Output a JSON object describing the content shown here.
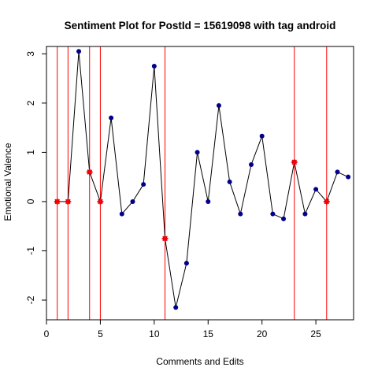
{
  "chart_data": {
    "type": "line",
    "title": "Sentiment Plot for PostId =  15619098  with tag  android",
    "xlabel": "Comments and Edits",
    "ylabel": "Emotional Valence",
    "xlim": [
      0,
      28.5
    ],
    "ylim": [
      -2.4,
      3.15
    ],
    "x_ticks": [
      0,
      5,
      10,
      15,
      20,
      25
    ],
    "y_ticks": [
      -2,
      -1,
      0,
      1,
      2,
      3
    ],
    "grid": false,
    "legend": "none",
    "series": [
      {
        "x": [
          1,
          2,
          3,
          4,
          5,
          6,
          7,
          8,
          9,
          10,
          11,
          12,
          13,
          14,
          15,
          16,
          17,
          18,
          19,
          20,
          21,
          22,
          23,
          24,
          25,
          26,
          27,
          28
        ],
        "y": [
          0,
          0,
          3.05,
          0.6,
          0,
          1.7,
          -0.25,
          0,
          0.35,
          2.75,
          -0.75,
          -2.15,
          -1.25,
          1.0,
          0,
          1.95,
          0.4,
          -0.25,
          0.75,
          1.33,
          -0.25,
          -0.35,
          0.8,
          -0.25,
          0.25,
          0,
          0.6,
          0.5
        ],
        "line_color": "#000000",
        "point_color": "#00008B"
      }
    ],
    "edit_markers": {
      "x": [
        1,
        2,
        4,
        5,
        11,
        23,
        26
      ],
      "y": [
        0,
        0,
        0.6,
        0,
        -0.75,
        0.8,
        0
      ],
      "color": "#FF0000"
    }
  }
}
